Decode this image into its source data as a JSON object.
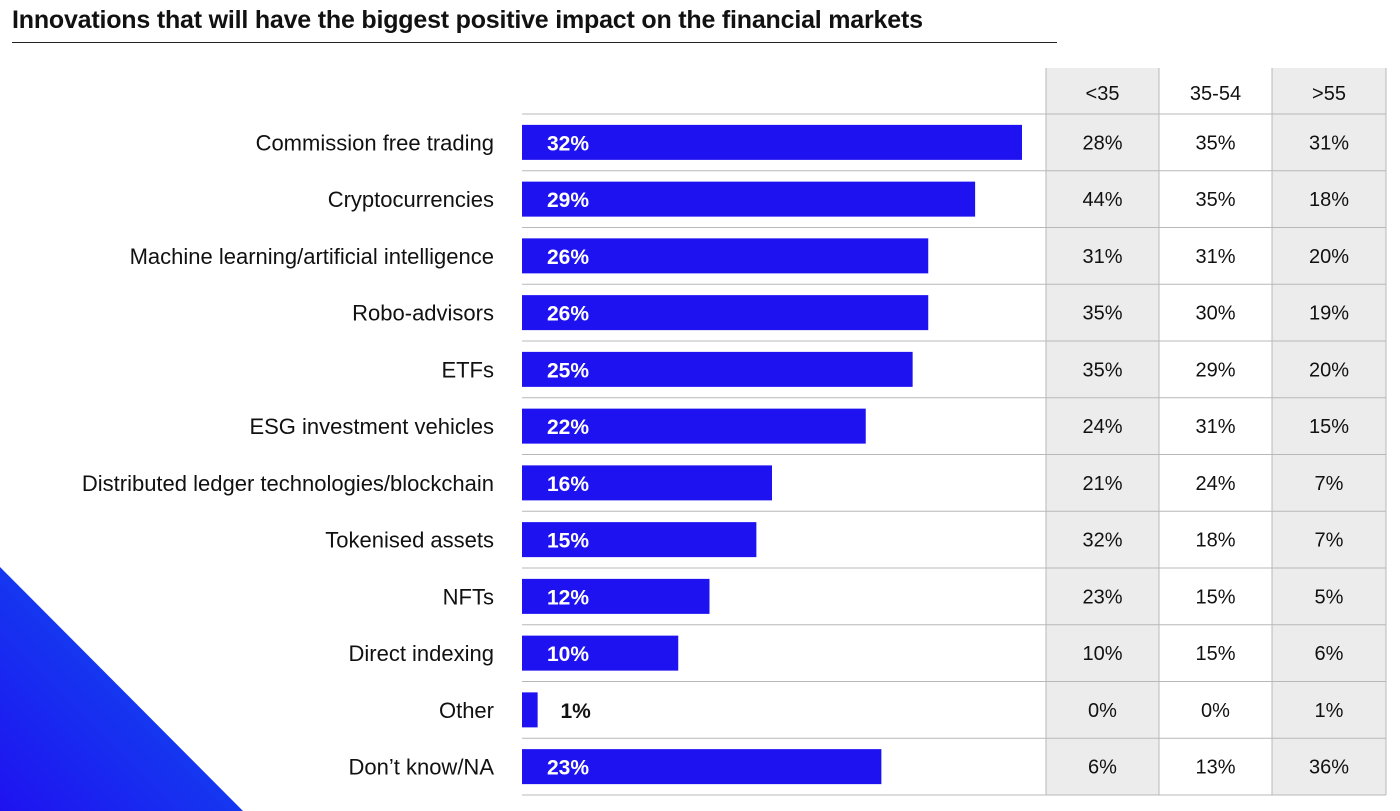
{
  "title": "Innovations that will have the biggest positive impact on the financial markets",
  "colors": {
    "bar": "#1f12f0",
    "bar_label": "#ffffff",
    "outside_label": "#111111",
    "table_shade": "#ececec",
    "gridline": "#b8b8b8",
    "decoration_gradient_start": "#1f12f0",
    "decoration_gradient_end": "#0b5cf0"
  },
  "chart_data": {
    "type": "bar",
    "orientation": "horizontal",
    "title": "Innovations that will have the biggest positive impact on the financial markets",
    "xlabel": "",
    "ylabel": "",
    "xlim": [
      0,
      32
    ],
    "grid": false,
    "categories": [
      "Commission free trading",
      "Cryptocurrencies",
      "Machine learning/artificial intelligence",
      "Robo-advisors",
      "ETFs",
      "ESG investment vehicles",
      "Distributed ledger technologies/blockchain",
      "Tokenised assets",
      "NFTs",
      "Direct indexing",
      "Other",
      "Don’t know/NA"
    ],
    "values": [
      32,
      29,
      26,
      26,
      25,
      22,
      16,
      15,
      12,
      10,
      1,
      23
    ],
    "value_labels": [
      "32%",
      "29%",
      "26%",
      "26%",
      "25%",
      "22%",
      "16%",
      "15%",
      "12%",
      "10%",
      "1%",
      "23%"
    ],
    "age_table": {
      "headers": [
        "<35",
        "35-54",
        ">55"
      ],
      "rows": [
        [
          "28%",
          "35%",
          "31%"
        ],
        [
          "44%",
          "35%",
          "18%"
        ],
        [
          "31%",
          "31%",
          "20%"
        ],
        [
          "35%",
          "30%",
          "19%"
        ],
        [
          "35%",
          "29%",
          "20%"
        ],
        [
          "24%",
          "31%",
          "15%"
        ],
        [
          "21%",
          "24%",
          "7%"
        ],
        [
          "32%",
          "18%",
          "7%"
        ],
        [
          "23%",
          "15%",
          "5%"
        ],
        [
          "10%",
          "15%",
          "6%"
        ],
        [
          "0%",
          "0%",
          "1%"
        ],
        [
          "6%",
          "13%",
          "36%"
        ]
      ]
    }
  }
}
